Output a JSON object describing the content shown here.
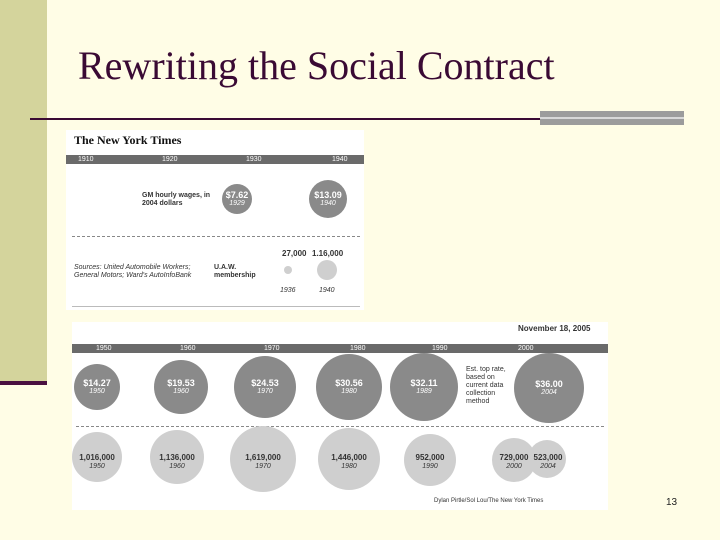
{
  "slide": {
    "title": "Rewriting the Social Contract",
    "page_number": "13"
  },
  "clip1": {
    "masthead": "The New York Times",
    "timeline": [
      "1910",
      "1920",
      "1930",
      "1940"
    ],
    "wages_label": "GM hourly wages, in 2004 dollars",
    "wages": [
      {
        "value": "$7.62",
        "year": "1929"
      },
      {
        "value": "$13.09",
        "year": "1940"
      }
    ],
    "source": "Sources: United Automobile Workers; General Motors; Ward's AutoInfoBank",
    "membership_label": "U.A.W. membership",
    "membership": [
      {
        "value": "27,000",
        "year": "1936"
      },
      {
        "value": "1.16,000",
        "year": "1940"
      }
    ]
  },
  "clip2": {
    "date": "November 18, 2005",
    "timeline": [
      "1950",
      "1960",
      "1970",
      "1980",
      "1990",
      "2000"
    ],
    "wages": [
      {
        "value": "$14.27",
        "year": "1950"
      },
      {
        "value": "$19.53",
        "year": "1960"
      },
      {
        "value": "$24.53",
        "year": "1970"
      },
      {
        "value": "$30.56",
        "year": "1980"
      },
      {
        "value": "$32.11",
        "year": "1989"
      },
      {
        "value": "$36.00",
        "year": "2004"
      }
    ],
    "note": "Est. top rate, based on current data collection method",
    "membership": [
      {
        "value": "1,016,000",
        "year": "1950"
      },
      {
        "value": "1,136,000",
        "year": "1960"
      },
      {
        "value": "1,619,000",
        "year": "1970"
      },
      {
        "value": "1,446,000",
        "year": "1980"
      },
      {
        "value": "952,000",
        "year": "1990"
      },
      {
        "value": "729,000",
        "year": "2000"
      },
      {
        "value": "523,000",
        "year": "2004"
      }
    ],
    "credit": "Dylan Pirtle/Sol Lou/The New York Times"
  }
}
